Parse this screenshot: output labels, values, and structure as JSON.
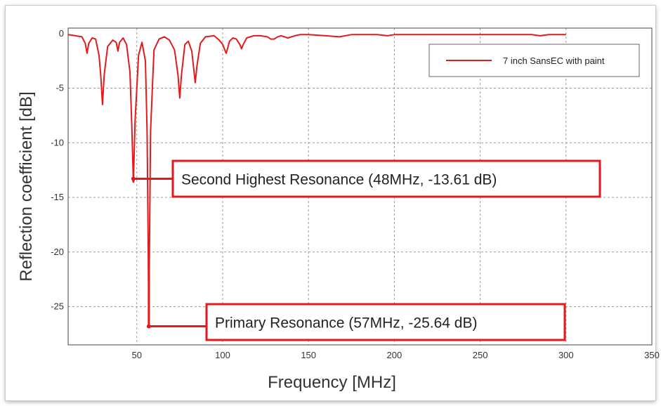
{
  "chart_data": {
    "type": "line",
    "xlabel": "Frequency [MHz]",
    "ylabel": "Reflection coefficient [dB]",
    "xlim": [
      10,
      350
    ],
    "ylim": [
      -28.5,
      0.5
    ],
    "xticks": [
      50,
      100,
      150,
      200,
      250,
      300,
      350
    ],
    "xtick_labels": [
      "50",
      "100",
      "150",
      "200",
      "250",
      "300",
      "350"
    ],
    "yticks": [
      0,
      -5,
      -10,
      -15,
      -20,
      -25
    ],
    "ytick_labels": [
      "0",
      "-5",
      "-10",
      "-15",
      "-20",
      "-25"
    ],
    "grid": true,
    "legend_position": "top-right",
    "series": [
      {
        "name": "7 inch SansEC with paint",
        "color": "#e31a1c",
        "x": [
          10,
          18,
          20,
          21,
          22,
          24,
          26,
          28,
          29,
          30,
          31,
          33,
          36,
          38,
          39,
          40,
          42,
          44,
          46,
          47,
          48,
          49,
          51,
          53,
          55,
          56,
          57,
          58,
          60,
          63,
          66,
          69,
          72,
          74,
          75,
          76,
          78,
          80,
          82,
          83,
          84,
          85,
          87,
          90,
          95,
          98,
          100,
          102,
          103,
          104,
          106,
          108,
          110,
          111,
          112,
          114,
          118,
          122,
          126,
          128,
          130,
          132,
          134,
          136,
          138,
          140,
          142,
          145,
          150,
          160,
          168,
          175,
          185,
          190,
          196,
          200,
          210,
          220,
          228,
          240,
          260,
          280,
          285,
          290,
          300
        ],
        "y": [
          -0.1,
          -0.3,
          -0.9,
          -1.8,
          -0.9,
          -0.4,
          -0.5,
          -2.0,
          -3.8,
          -6.5,
          -3.8,
          -1.2,
          -0.6,
          -0.8,
          -1.6,
          -0.8,
          -0.4,
          -1.0,
          -3.5,
          -8.0,
          -13.61,
          -8.0,
          -2.0,
          -0.8,
          -2.5,
          -9.0,
          -25.64,
          -9.0,
          -1.5,
          -0.5,
          -0.3,
          -0.6,
          -1.5,
          -3.8,
          -5.9,
          -3.8,
          -1.0,
          -0.7,
          -1.6,
          -3.0,
          -4.5,
          -3.0,
          -0.9,
          -0.3,
          -0.2,
          -0.6,
          -1.0,
          -1.8,
          -1.3,
          -0.7,
          -0.4,
          -0.5,
          -1.0,
          -1.4,
          -1.0,
          -0.4,
          -0.2,
          -0.2,
          -0.3,
          -0.5,
          -0.5,
          -0.3,
          -0.2,
          -0.3,
          -0.4,
          -0.3,
          -0.2,
          -0.1,
          -0.1,
          -0.2,
          -0.3,
          -0.1,
          -0.1,
          -0.1,
          -0.2,
          -0.1,
          -0.1,
          -0.1,
          -0.1,
          -0.1,
          -0.1,
          -0.1,
          -0.2,
          -0.1,
          -0.1
        ]
      }
    ],
    "annotations": [
      {
        "text": "Second Highest Resonance (48MHz, -13.61 dB)",
        "x": 48,
        "y": -13.61
      },
      {
        "text": "Primary Resonance (57MHz, -25.64 dB)",
        "x": 57,
        "y": -26.8
      }
    ]
  }
}
